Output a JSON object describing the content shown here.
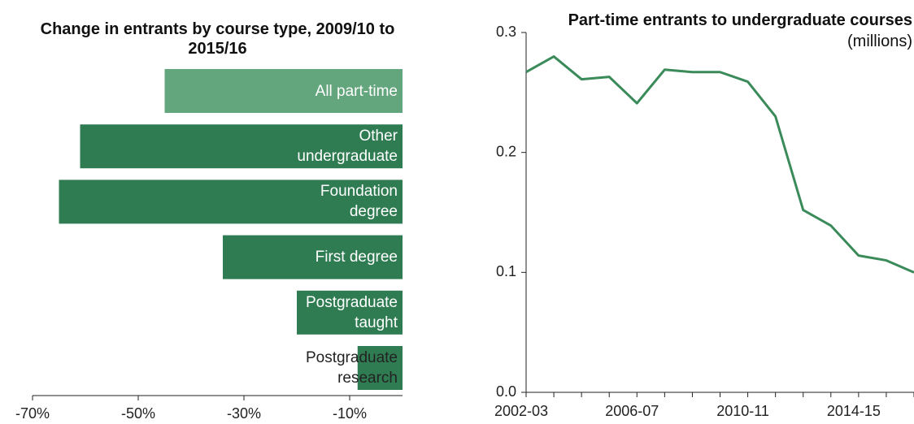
{
  "chart_data": [
    {
      "type": "barh",
      "title": "Change in entrants by course type, 2009/10 to 2015/16",
      "categories": [
        "All part-time",
        "Other undergraduate",
        "Foundation degree",
        "First degree",
        "Postgraduate taught",
        "Postgraduate research"
      ],
      "values": [
        -45,
        -61,
        -65,
        -34,
        -20,
        -8.5
      ],
      "colors": [
        "#63a57c",
        "#2f7c52",
        "#2f7c52",
        "#2f7c52",
        "#2f7c52",
        "#2f7c52"
      ],
      "xlim": [
        -70,
        0
      ],
      "xticks": [
        {
          "value": -70,
          "label": "-70%"
        },
        {
          "value": -50,
          "label": "-50%"
        },
        {
          "value": -30,
          "label": "-30%"
        },
        {
          "value": -10,
          "label": "-10%"
        }
      ]
    },
    {
      "type": "line",
      "title": "Part-time entrants to undergraduate courses",
      "subtitle": "(millions)",
      "categories": [
        "2002-03",
        null,
        null,
        null,
        "2006-07",
        null,
        null,
        null,
        "2010-11",
        null,
        null,
        null,
        "2014-15",
        null,
        null
      ],
      "values": [
        0.267,
        0.28,
        0.261,
        0.263,
        0.241,
        0.269,
        0.267,
        0.267,
        0.259,
        0.23,
        0.152,
        0.139,
        0.114,
        0.11,
        0.1
      ],
      "color": "#3a8a5a",
      "ylim": [
        0,
        0.3
      ],
      "yticks": [
        {
          "value": 0,
          "label": "0.0"
        },
        0.1,
        0.2,
        0.3
      ]
    }
  ]
}
